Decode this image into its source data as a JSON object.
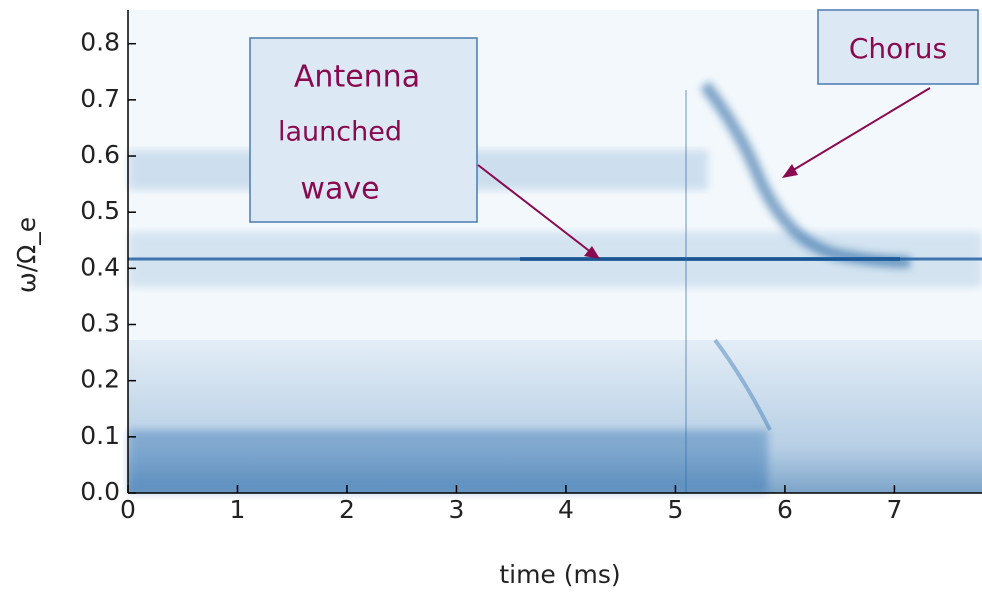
{
  "chart_data": {
    "type": "spectrogram",
    "xlabel": "time (ms)",
    "ylabel": "ω/Ω_e",
    "xlim": [
      0,
      7.8
    ],
    "ylim": [
      0,
      0.86
    ],
    "xticks": [
      0,
      1,
      2,
      3,
      4,
      5,
      6,
      7
    ],
    "yticks": [
      {
        "value": 0,
        "label": "0.0"
      },
      0.1,
      0.2,
      0.3,
      0.4,
      0.5,
      0.6,
      0.7,
      0.8
    ],
    "annotations": [
      {
        "lines": [
          "Antenna",
          "launched",
          "wave"
        ]
      },
      {
        "lines": [
          "Chorus"
        ]
      }
    ]
  }
}
